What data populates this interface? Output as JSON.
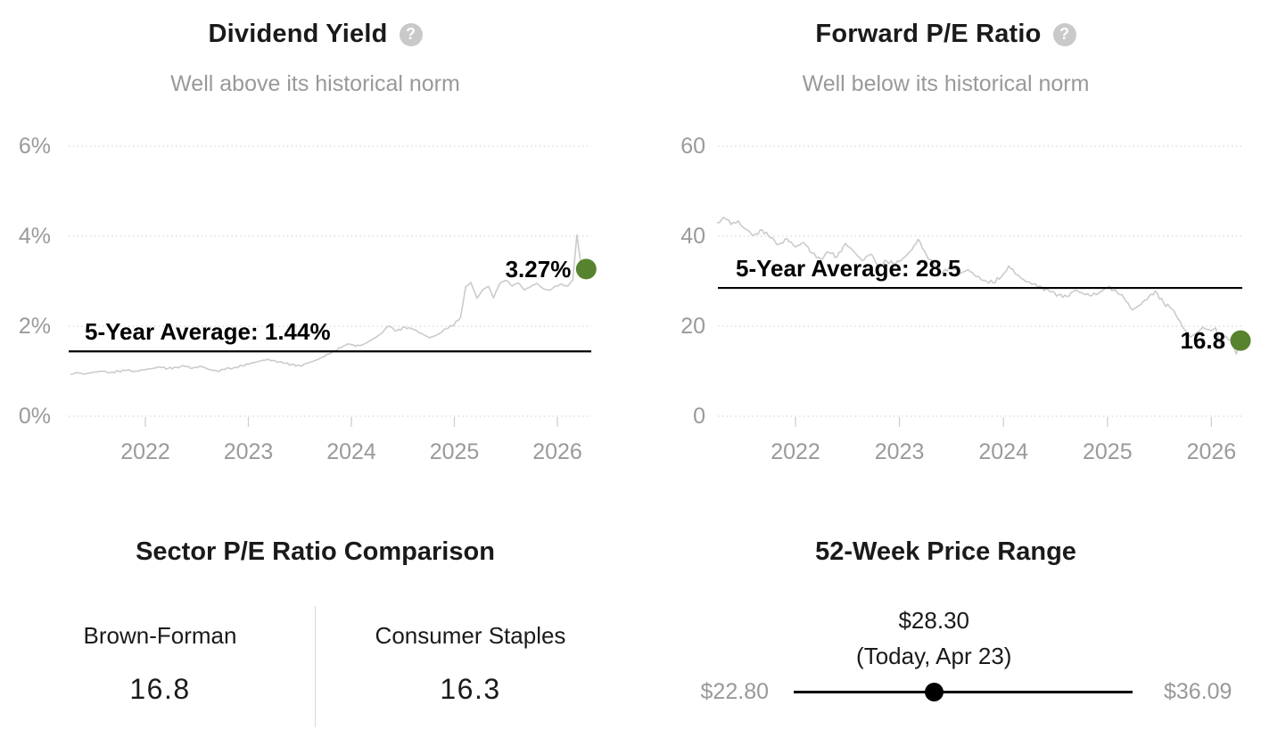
{
  "colors": {
    "accent_green": "#57822e",
    "text_dark": "#1a1a1a",
    "text_gray": "#999999",
    "gridline": "#d4d4d4",
    "tick": "#cfcfcf",
    "series_line": "#cbcbcb",
    "average_line": "#000000"
  },
  "icons": {
    "help": "?"
  },
  "charts": [
    {
      "title": "Dividend Yield",
      "subtitle": "Well above its historical norm",
      "average_label": "5-Year Average: 1.44%",
      "current_label": "3.27%"
    },
    {
      "title": "Forward P/E Ratio",
      "subtitle": "Well below its historical norm",
      "average_label": "5-Year Average: 28.5",
      "current_label": "16.8"
    }
  ],
  "chart_data": [
    {
      "type": "line",
      "title": "Dividend Yield",
      "ylim": [
        0,
        6
      ],
      "xlim": [
        2021.28,
        2026.33
      ],
      "grid": "horizontal-dotted",
      "legend": null,
      "yticks": [
        {
          "value": 0,
          "label": "0%"
        },
        {
          "value": 2,
          "label": "2%"
        },
        {
          "value": 4,
          "label": "4%"
        },
        {
          "value": 6,
          "label": "6%"
        }
      ],
      "xticks": [
        {
          "value": 2022,
          "label": "2022"
        },
        {
          "value": 2023,
          "label": "2023"
        },
        {
          "value": 2024,
          "label": "2024"
        },
        {
          "value": 2025,
          "label": "2025"
        },
        {
          "value": 2026,
          "label": "2026"
        }
      ],
      "average_line": 1.44,
      "current_point": {
        "x": 2026.28,
        "y": 3.27
      },
      "series": [
        {
          "name": "Dividend Yield %",
          "points": [
            [
              2021.28,
              0.93
            ],
            [
              2021.35,
              0.96
            ],
            [
              2021.42,
              0.94
            ],
            [
              2021.5,
              0.98
            ],
            [
              2021.58,
              1.0
            ],
            [
              2021.66,
              0.97
            ],
            [
              2021.74,
              1.0
            ],
            [
              2021.82,
              1.02
            ],
            [
              2021.9,
              1.0
            ],
            [
              2021.98,
              1.03
            ],
            [
              2022.06,
              1.06
            ],
            [
              2022.14,
              1.09
            ],
            [
              2022.22,
              1.06
            ],
            [
              2022.3,
              1.09
            ],
            [
              2022.38,
              1.11
            ],
            [
              2022.46,
              1.07
            ],
            [
              2022.54,
              1.11
            ],
            [
              2022.62,
              1.04
            ],
            [
              2022.7,
              1.0
            ],
            [
              2022.78,
              1.05
            ],
            [
              2022.86,
              1.08
            ],
            [
              2022.94,
              1.12
            ],
            [
              2023.02,
              1.17
            ],
            [
              2023.1,
              1.22
            ],
            [
              2023.18,
              1.26
            ],
            [
              2023.26,
              1.23
            ],
            [
              2023.34,
              1.18
            ],
            [
              2023.42,
              1.15
            ],
            [
              2023.5,
              1.12
            ],
            [
              2023.58,
              1.18
            ],
            [
              2023.66,
              1.25
            ],
            [
              2023.74,
              1.33
            ],
            [
              2023.82,
              1.44
            ],
            [
              2023.9,
              1.52
            ],
            [
              2023.97,
              1.61
            ],
            [
              2024.04,
              1.55
            ],
            [
              2024.12,
              1.6
            ],
            [
              2024.2,
              1.7
            ],
            [
              2024.28,
              1.82
            ],
            [
              2024.36,
              2.0
            ],
            [
              2024.44,
              1.9
            ],
            [
              2024.52,
              1.98
            ],
            [
              2024.6,
              1.93
            ],
            [
              2024.68,
              1.84
            ],
            [
              2024.76,
              1.74
            ],
            [
              2024.84,
              1.82
            ],
            [
              2024.92,
              1.94
            ],
            [
              2025.0,
              2.04
            ],
            [
              2025.06,
              2.2
            ],
            [
              2025.11,
              2.88
            ],
            [
              2025.16,
              2.97
            ],
            [
              2025.22,
              2.62
            ],
            [
              2025.28,
              2.82
            ],
            [
              2025.33,
              2.89
            ],
            [
              2025.38,
              2.63
            ],
            [
              2025.44,
              2.94
            ],
            [
              2025.5,
              3.02
            ],
            [
              2025.56,
              2.89
            ],
            [
              2025.62,
              2.96
            ],
            [
              2025.68,
              2.8
            ],
            [
              2025.74,
              2.88
            ],
            [
              2025.8,
              2.95
            ],
            [
              2025.86,
              2.84
            ],
            [
              2025.92,
              2.8
            ],
            [
              2025.98,
              2.89
            ],
            [
              2026.04,
              2.94
            ],
            [
              2026.1,
              2.89
            ],
            [
              2026.15,
              3.03
            ],
            [
              2026.19,
              4.03
            ],
            [
              2026.22,
              3.52
            ],
            [
              2026.25,
              3.12
            ],
            [
              2026.28,
              3.27
            ]
          ]
        }
      ]
    },
    {
      "type": "line",
      "title": "Forward P/E Ratio",
      "ylim": [
        0,
        60
      ],
      "xlim": [
        2021.25,
        2026.3
      ],
      "grid": "horizontal-dotted",
      "legend": null,
      "yticks": [
        {
          "value": 0,
          "label": "0"
        },
        {
          "value": 20,
          "label": "20"
        },
        {
          "value": 40,
          "label": "40"
        },
        {
          "value": 60,
          "label": "60"
        }
      ],
      "xticks": [
        {
          "value": 2022,
          "label": "2022"
        },
        {
          "value": 2023,
          "label": "2023"
        },
        {
          "value": 2024,
          "label": "2024"
        },
        {
          "value": 2025,
          "label": "2025"
        },
        {
          "value": 2026,
          "label": "2026"
        }
      ],
      "average_line": 28.5,
      "current_point": {
        "x": 2026.28,
        "y": 16.8
      },
      "series": [
        {
          "name": "Forward P/E Ratio",
          "points": [
            [
              2021.25,
              43.0
            ],
            [
              2021.31,
              44.2
            ],
            [
              2021.38,
              42.6
            ],
            [
              2021.45,
              43.4
            ],
            [
              2021.52,
              41.6
            ],
            [
              2021.6,
              40.2
            ],
            [
              2021.68,
              41.4
            ],
            [
              2021.76,
              39.6
            ],
            [
              2021.84,
              38.2
            ],
            [
              2021.92,
              39.4
            ],
            [
              2022.0,
              37.6
            ],
            [
              2022.08,
              38.6
            ],
            [
              2022.16,
              36.2
            ],
            [
              2022.24,
              35.0
            ],
            [
              2022.32,
              36.4
            ],
            [
              2022.4,
              35.4
            ],
            [
              2022.48,
              38.4
            ],
            [
              2022.56,
              36.6
            ],
            [
              2022.64,
              34.6
            ],
            [
              2022.72,
              36.0
            ],
            [
              2022.8,
              33.6
            ],
            [
              2022.88,
              34.4
            ],
            [
              2022.96,
              33.8
            ],
            [
              2023.04,
              35.2
            ],
            [
              2023.12,
              37.0
            ],
            [
              2023.18,
              39.3
            ],
            [
              2023.26,
              35.8
            ],
            [
              2023.34,
              33.6
            ],
            [
              2023.42,
              32.0
            ],
            [
              2023.5,
              33.4
            ],
            [
              2023.58,
              31.6
            ],
            [
              2023.66,
              32.6
            ],
            [
              2023.74,
              31.0
            ],
            [
              2023.82,
              30.2
            ],
            [
              2023.9,
              29.6
            ],
            [
              2023.98,
              31.0
            ],
            [
              2024.05,
              33.4
            ],
            [
              2024.13,
              31.4
            ],
            [
              2024.21,
              30.0
            ],
            [
              2024.29,
              29.4
            ],
            [
              2024.37,
              28.6
            ],
            [
              2024.45,
              27.6
            ],
            [
              2024.53,
              27.0
            ],
            [
              2024.61,
              26.6
            ],
            [
              2024.69,
              28.0
            ],
            [
              2024.77,
              27.2
            ],
            [
              2024.85,
              26.8
            ],
            [
              2024.93,
              27.6
            ],
            [
              2025.0,
              28.5
            ],
            [
              2025.08,
              28.0
            ],
            [
              2025.16,
              26.2
            ],
            [
              2025.24,
              23.6
            ],
            [
              2025.32,
              24.8
            ],
            [
              2025.4,
              26.6
            ],
            [
              2025.46,
              27.8
            ],
            [
              2025.54,
              25.2
            ],
            [
              2025.62,
              23.8
            ],
            [
              2025.68,
              21.6
            ],
            [
              2025.74,
              19.2
            ],
            [
              2025.8,
              17.6
            ],
            [
              2025.86,
              18.6
            ],
            [
              2025.92,
              19.8
            ],
            [
              2025.98,
              19.2
            ],
            [
              2026.04,
              19.6
            ],
            [
              2026.09,
              15.9
            ],
            [
              2026.14,
              17.8
            ],
            [
              2026.19,
              16.9
            ],
            [
              2026.24,
              13.8
            ],
            [
              2026.28,
              16.8
            ]
          ]
        }
      ]
    }
  ],
  "sector_comparison": {
    "title": "Sector P/E Ratio Comparison",
    "columns": [
      {
        "label": "Brown-Forman",
        "value": "16.8"
      },
      {
        "label": "Consumer Staples",
        "value": "16.3"
      }
    ]
  },
  "price_range": {
    "title": "52-Week Price Range",
    "current_price_label": "$28.30",
    "current_date_label": "(Today, Apr 23)",
    "low_label": "$22.80",
    "high_label": "$36.09",
    "low": 22.8,
    "high": 36.09,
    "current": 28.3
  }
}
